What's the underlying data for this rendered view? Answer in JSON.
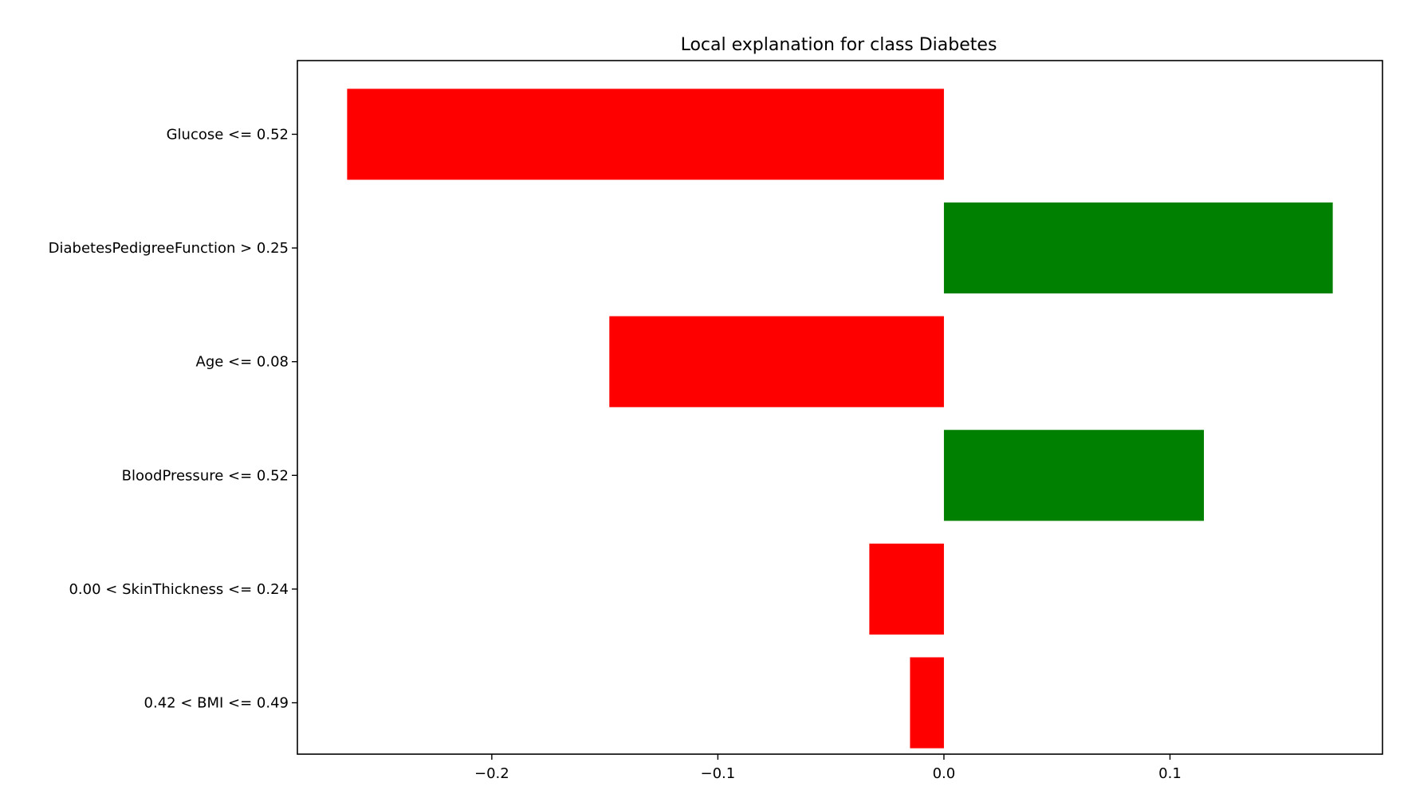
{
  "chart_data": {
    "type": "bar",
    "orientation": "horizontal",
    "title": "Local explanation for class Diabetes",
    "xlabel": "",
    "ylabel": "",
    "categories": [
      "Glucose <= 0.52",
      "DiabetesPedigreeFunction > 0.25",
      "Age <= 0.08",
      "BloodPressure <= 0.52",
      "0.00 < SkinThickness <= 0.24",
      "0.42 < BMI <= 0.49"
    ],
    "values": [
      -0.264,
      0.172,
      -0.148,
      0.115,
      -0.033,
      -0.015
    ],
    "xlim": [
      -0.286,
      0.194
    ],
    "xticks": [
      -0.2,
      -0.1,
      0.0,
      0.1
    ],
    "xtick_labels": [
      "−0.2",
      "−0.1",
      "0.0",
      "0.1"
    ],
    "grid": false,
    "legend": "none",
    "colors": {
      "positive": "#008000",
      "negative": "#ff0000",
      "axes": "#000000"
    }
  }
}
